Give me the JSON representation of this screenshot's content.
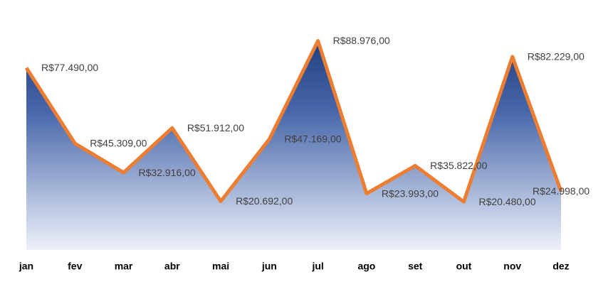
{
  "chart_data": {
    "type": "area",
    "categories": [
      "jan",
      "fev",
      "mar",
      "abr",
      "mai",
      "jun",
      "jul",
      "ago",
      "set",
      "out",
      "nov",
      "dez"
    ],
    "values": [
      77490,
      45309,
      32916,
      51912,
      20692,
      47169,
      88976,
      23993,
      35822,
      20480,
      82229,
      24998
    ],
    "value_labels": [
      "R$77.490,00",
      "R$45.309,00",
      "R$32.916,00",
      "R$51.912,00",
      "R$20.692,00",
      "R$47.169,00",
      "R$88.976,00",
      "R$23.993,00",
      "R$35.822,00",
      "R$20.480,00",
      "R$82.229,00",
      "R$24.998,00"
    ],
    "color": "#ED7D31",
    "ylim": [
      0,
      100000
    ]
  }
}
